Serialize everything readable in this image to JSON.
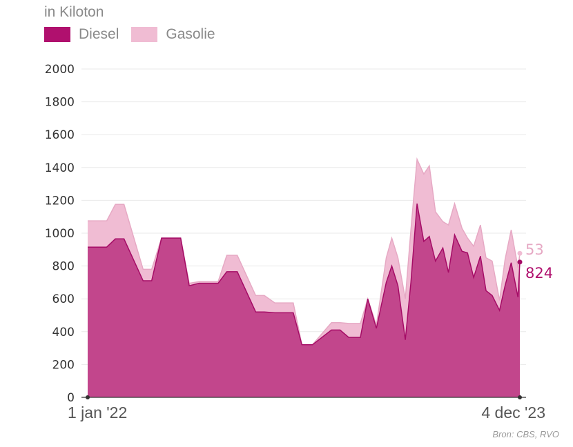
{
  "subtitle": "in Kiloton",
  "legend": [
    {
      "label": "Diesel",
      "color": "#b0106e"
    },
    {
      "label": "Gasolie",
      "color": "#f0bcd3"
    }
  ],
  "source": "Bron: CBS, RVO",
  "end_labels": {
    "gasolie": "53",
    "diesel": "824"
  },
  "chart_data": {
    "type": "area",
    "stacked": true,
    "xlabel": "",
    "ylabel": "",
    "ylim": [
      0,
      2000
    ],
    "yticks": [
      0,
      200,
      400,
      600,
      800,
      1000,
      1200,
      1400,
      1600,
      1800,
      2000
    ],
    "x_tick_labels": [
      "1 jan '22",
      "4 dec '23"
    ],
    "x_range": [
      "2022-01-01",
      "2023-12-04"
    ],
    "grid": true,
    "legend_position": "top-left",
    "x": [
      "2022-01-01",
      "2022-02-01",
      "2022-02-15",
      "2022-03-01",
      "2022-04-01",
      "2022-04-15",
      "2022-05-01",
      "2022-06-01",
      "2022-06-15",
      "2022-07-01",
      "2022-08-01",
      "2022-08-15",
      "2022-09-01",
      "2022-10-01",
      "2022-10-15",
      "2022-11-01",
      "2022-12-01",
      "2022-12-15",
      "2023-01-01",
      "2023-02-01",
      "2023-02-15",
      "2023-03-01",
      "2023-03-20",
      "2023-04-01",
      "2023-04-15",
      "2023-05-01",
      "2023-05-10",
      "2023-05-20",
      "2023-06-01",
      "2023-06-10",
      "2023-06-20",
      "2023-07-01",
      "2023-07-10",
      "2023-07-20",
      "2023-08-01",
      "2023-08-10",
      "2023-08-20",
      "2023-09-01",
      "2023-09-10",
      "2023-09-20",
      "2023-10-01",
      "2023-10-10",
      "2023-10-20",
      "2023-11-01",
      "2023-11-10",
      "2023-11-20",
      "2023-12-01",
      "2023-12-04"
    ],
    "series": [
      {
        "name": "Diesel",
        "color": "#b0106e",
        "values": [
          915,
          915,
          965,
          965,
          710,
          710,
          970,
          970,
          680,
          695,
          695,
          765,
          765,
          520,
          520,
          515,
          515,
          320,
          320,
          410,
          410,
          365,
          365,
          600,
          420,
          700,
          800,
          680,
          350,
          700,
          1180,
          950,
          980,
          830,
          910,
          760,
          990,
          890,
          880,
          730,
          860,
          650,
          620,
          530,
          680,
          820,
          610,
          824
        ]
      },
      {
        "name": "Gasolie",
        "color": "#f0bcd3",
        "values": [
          160,
          160,
          210,
          210,
          70,
          70,
          0,
          0,
          15,
          10,
          10,
          100,
          100,
          100,
          100,
          60,
          60,
          0,
          0,
          45,
          45,
          85,
          85,
          0,
          20,
          150,
          170,
          170,
          250,
          320,
          270,
          410,
          430,
          300,
          160,
          290,
          190,
          140,
          90,
          190,
          190,
          200,
          210,
          60,
          160,
          200,
          180,
          53
        ]
      }
    ]
  }
}
